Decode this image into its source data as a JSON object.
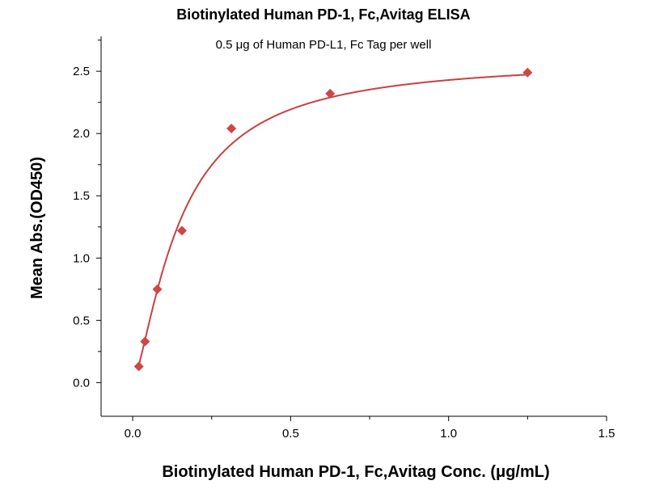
{
  "chart_data": {
    "type": "scatter",
    "title": "Biotinylated Human PD-1, Fc,Avitag ELISA",
    "subtitle": "0.5 μg of Human PD-L1, Fc Tag per well",
    "xlabel": "Biotinylated Human PD-1, Fc,Avitag Conc. (μg/mL)",
    "ylabel": "Mean Abs.(OD450)",
    "xlim": [
      -0.1,
      1.5
    ],
    "ylim": [
      -0.27,
      2.78
    ],
    "xticks": [
      "0.0",
      "0.5",
      "1.0",
      "1.5"
    ],
    "xtick_values": [
      0,
      0.5,
      1.0,
      1.5
    ],
    "yticks": [
      "0.0",
      "0.5",
      "1.0",
      "1.5",
      "2.0",
      "2.5"
    ],
    "ytick_values": [
      0,
      0.5,
      1.0,
      1.5,
      2.0,
      2.5
    ],
    "grid": false,
    "series": [
      {
        "name": "Biotinylated Human PD-1, Fc,Avitag",
        "x": [
          0.0195,
          0.039,
          0.078,
          0.156,
          0.3125,
          0.625,
          1.25
        ],
        "y": [
          0.13,
          0.33,
          0.75,
          1.22,
          2.04,
          2.32,
          2.49
        ],
        "marker": "diamond",
        "color": "#d04545"
      }
    ],
    "fit": {
      "type": "4PL",
      "bottom": 0,
      "top": 2.6,
      "ec50": 0.15,
      "hill": 1.4,
      "color": "#c94040"
    }
  }
}
